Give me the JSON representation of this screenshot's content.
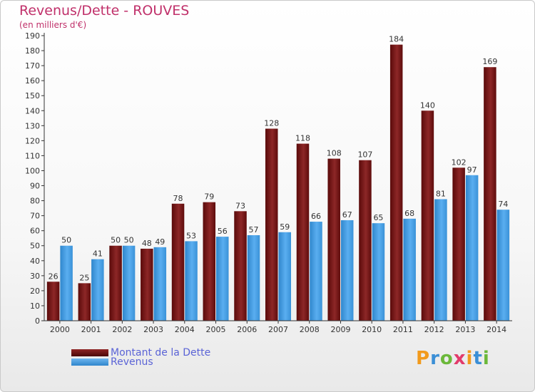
{
  "header": {
    "title": "Revenus/Dette - ROUVES",
    "subtitle": "(en milliers d'€)"
  },
  "legend": {
    "items": [
      {
        "label": "Montant de la Dette",
        "color": "#7a1414"
      },
      {
        "label": "Revenus",
        "color": "#3f9be0"
      }
    ]
  },
  "logo": {
    "text": "Proxiti",
    "colors": [
      "#f29a1c",
      "#3b8fd6",
      "#6bb83a",
      "#e23b6b",
      "#f29a1c",
      "#3b8fd6",
      "#6bb83a"
    ]
  },
  "chart_data": {
    "type": "bar",
    "title": "Revenus/Dette - ROUVES",
    "ylabel": "(en milliers d'€)",
    "xlabel": "",
    "categories": [
      "2000",
      "2001",
      "2002",
      "2003",
      "2004",
      "2005",
      "2006",
      "2007",
      "2008",
      "2009",
      "2010",
      "2011",
      "2012",
      "2013",
      "2014"
    ],
    "series": [
      {
        "name": "Montant de la Dette",
        "color": "#7a1414",
        "values": [
          26,
          25,
          50,
          48,
          78,
          79,
          73,
          128,
          118,
          108,
          107,
          184,
          140,
          102,
          169
        ]
      },
      {
        "name": "Revenus",
        "color": "#3f9be0",
        "values": [
          50,
          41,
          50,
          49,
          53,
          56,
          57,
          59,
          66,
          67,
          65,
          68,
          81,
          97,
          74
        ]
      }
    ],
    "ylim": [
      0,
      190
    ],
    "ytick_step": 10,
    "grid": false,
    "legend_position": "bottom-left"
  }
}
